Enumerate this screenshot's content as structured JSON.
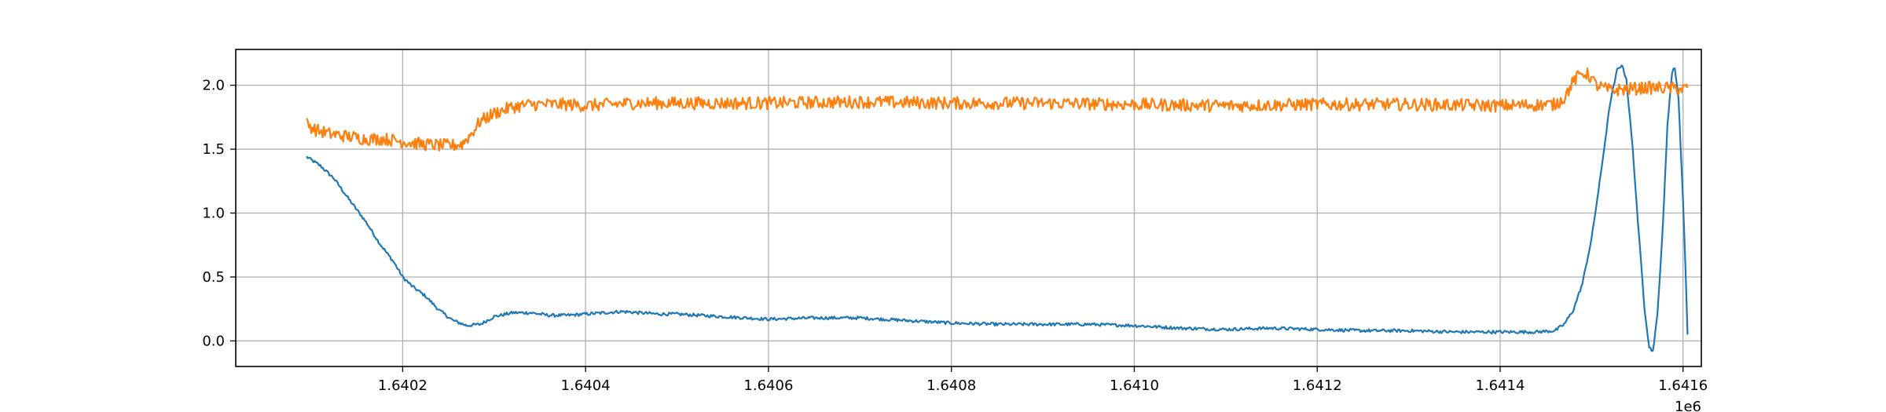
{
  "chart_data": {
    "type": "line",
    "title": "",
    "xlabel": "",
    "ylabel": "",
    "x_offset_label": "1e6",
    "xlim": [
      1640017.5,
      1641620.0
    ],
    "ylim": [
      -0.2,
      2.28
    ],
    "grid": true,
    "x_ticks": [
      {
        "value": 1640200,
        "label": "1.6402"
      },
      {
        "value": 1640400,
        "label": "1.6404"
      },
      {
        "value": 1640600,
        "label": "1.6406"
      },
      {
        "value": 1640800,
        "label": "1.6408"
      },
      {
        "value": 1641000,
        "label": "1.6410"
      },
      {
        "value": 1641200,
        "label": "1.6412"
      },
      {
        "value": 1641400,
        "label": "1.6414"
      },
      {
        "value": 1641600,
        "label": "1.6416"
      }
    ],
    "y_ticks": [
      {
        "value": 0.0,
        "label": "0.0"
      },
      {
        "value": 0.5,
        "label": "0.5"
      },
      {
        "value": 1.0,
        "label": "1.0"
      },
      {
        "value": 1.5,
        "label": "1.5"
      },
      {
        "value": 2.0,
        "label": "2.0"
      }
    ],
    "series": [
      {
        "color": "#1f77b4",
        "noise": 0.012,
        "points": [
          [
            1640095,
            1.44
          ],
          [
            1640110,
            1.37
          ],
          [
            1640125,
            1.27
          ],
          [
            1640140,
            1.12
          ],
          [
            1640160,
            0.93
          ],
          [
            1640175,
            0.76
          ],
          [
            1640190,
            0.62
          ],
          [
            1640200,
            0.5
          ],
          [
            1640210,
            0.43
          ],
          [
            1640225,
            0.35
          ],
          [
            1640240,
            0.24
          ],
          [
            1640255,
            0.16
          ],
          [
            1640270,
            0.12
          ],
          [
            1640285,
            0.13
          ],
          [
            1640300,
            0.19
          ],
          [
            1640320,
            0.22
          ],
          [
            1640340,
            0.22
          ],
          [
            1640360,
            0.2
          ],
          [
            1640380,
            0.2
          ],
          [
            1640400,
            0.21
          ],
          [
            1640420,
            0.22
          ],
          [
            1640440,
            0.23
          ],
          [
            1640460,
            0.22
          ],
          [
            1640480,
            0.21
          ],
          [
            1640500,
            0.21
          ],
          [
            1640550,
            0.19
          ],
          [
            1640600,
            0.17
          ],
          [
            1640650,
            0.18
          ],
          [
            1640700,
            0.18
          ],
          [
            1640750,
            0.16
          ],
          [
            1640800,
            0.14
          ],
          [
            1640850,
            0.13
          ],
          [
            1640900,
            0.13
          ],
          [
            1640950,
            0.13
          ],
          [
            1641000,
            0.12
          ],
          [
            1641050,
            0.1
          ],
          [
            1641100,
            0.09
          ],
          [
            1641150,
            0.1
          ],
          [
            1641200,
            0.09
          ],
          [
            1641250,
            0.08
          ],
          [
            1641300,
            0.08
          ],
          [
            1641350,
            0.07
          ],
          [
            1641400,
            0.07
          ],
          [
            1641440,
            0.07
          ],
          [
            1641460,
            0.08
          ],
          [
            1641470,
            0.13
          ],
          [
            1641480,
            0.24
          ],
          [
            1641490,
            0.45
          ],
          [
            1641500,
            0.8
          ],
          [
            1641510,
            1.3
          ],
          [
            1641520,
            1.85
          ],
          [
            1641528,
            2.12
          ],
          [
            1641533,
            2.16
          ],
          [
            1641538,
            2.05
          ],
          [
            1641545,
            1.5
          ],
          [
            1641552,
            0.8
          ],
          [
            1641558,
            0.25
          ],
          [
            1641563,
            -0.05
          ],
          [
            1641567,
            -0.08
          ],
          [
            1641572,
            0.2
          ],
          [
            1641578,
            0.9
          ],
          [
            1641583,
            1.7
          ],
          [
            1641588,
            2.1
          ],
          [
            1641591,
            2.14
          ],
          [
            1641595,
            1.9
          ],
          [
            1641600,
            1.1
          ],
          [
            1641603,
            0.5
          ],
          [
            1641605,
            0.05
          ]
        ]
      },
      {
        "color": "#ff7f0e",
        "noise": 0.05,
        "points": [
          [
            1640095,
            1.7
          ],
          [
            1640105,
            1.65
          ],
          [
            1640120,
            1.62
          ],
          [
            1640140,
            1.6
          ],
          [
            1640160,
            1.58
          ],
          [
            1640180,
            1.58
          ],
          [
            1640200,
            1.56
          ],
          [
            1640220,
            1.54
          ],
          [
            1640240,
            1.53
          ],
          [
            1640255,
            1.53
          ],
          [
            1640265,
            1.54
          ],
          [
            1640275,
            1.62
          ],
          [
            1640285,
            1.72
          ],
          [
            1640300,
            1.78
          ],
          [
            1640320,
            1.83
          ],
          [
            1640340,
            1.85
          ],
          [
            1640380,
            1.85
          ],
          [
            1640400,
            1.84
          ],
          [
            1640450,
            1.86
          ],
          [
            1640500,
            1.86
          ],
          [
            1640600,
            1.86
          ],
          [
            1640700,
            1.87
          ],
          [
            1640800,
            1.86
          ],
          [
            1640900,
            1.86
          ],
          [
            1641000,
            1.85
          ],
          [
            1641100,
            1.84
          ],
          [
            1641200,
            1.85
          ],
          [
            1641300,
            1.85
          ],
          [
            1641400,
            1.84
          ],
          [
            1641460,
            1.85
          ],
          [
            1641470,
            1.9
          ],
          [
            1641480,
            2.03
          ],
          [
            1641490,
            2.1
          ],
          [
            1641497,
            2.08
          ],
          [
            1641505,
            2.0
          ],
          [
            1641520,
            1.96
          ],
          [
            1641540,
            1.97
          ],
          [
            1641560,
            1.98
          ],
          [
            1641580,
            1.98
          ],
          [
            1641600,
            1.97
          ],
          [
            1641605,
            1.98
          ]
        ]
      }
    ]
  }
}
